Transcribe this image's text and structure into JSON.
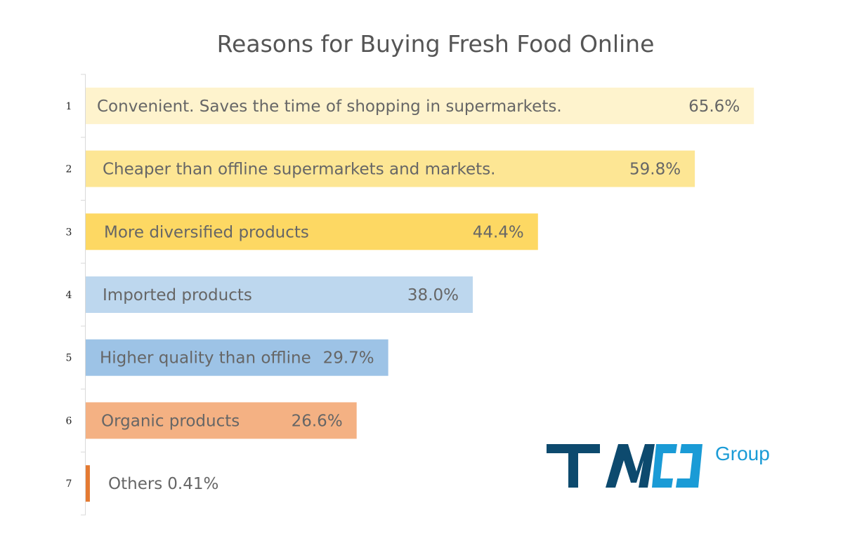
{
  "chart_data": {
    "type": "bar",
    "orientation": "horizontal",
    "title": "Reasons for Buying Fresh Food Online",
    "xlim": [
      0,
      70
    ],
    "grid": false,
    "legend": "none",
    "categories": [
      "Convenient. Saves the time of shopping in supermarkets.",
      "Cheaper than offline supermarkets and markets.",
      "More diversified products",
      "Imported products",
      "Higher quality than offline",
      "Organic products",
      "Others"
    ],
    "ranks": [
      "1",
      "2",
      "3",
      "4",
      "5",
      "6",
      "7"
    ],
    "values": [
      65.6,
      59.8,
      44.4,
      38.0,
      29.7,
      26.6,
      0.41
    ],
    "value_labels": [
      "65.6%",
      "59.8%",
      "44.4%",
      "38.0%",
      "29.7%",
      "26.6%",
      "0.41%"
    ],
    "colors": [
      "#fef3cd",
      "#fde694",
      "#fdd863",
      "#bdd7ee",
      "#9dc3e6",
      "#f4b183",
      "#e47a32"
    ]
  },
  "logo": {
    "text": "TMO",
    "sub": "Group",
    "colors": {
      "main": "#0d4a6e",
      "accent": "#1a9bd6"
    }
  }
}
